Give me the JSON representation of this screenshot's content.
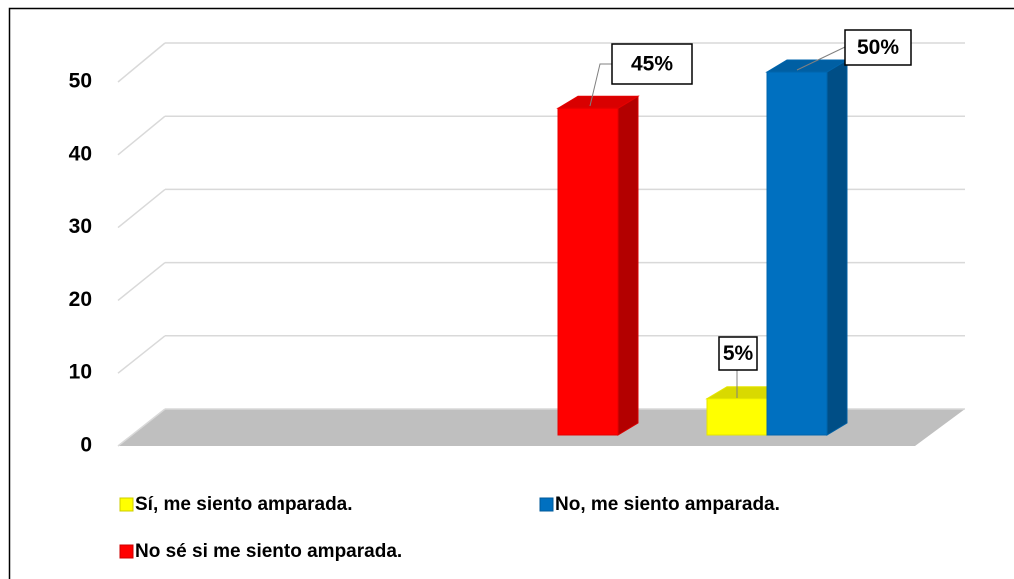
{
  "chart_data": {
    "type": "bar",
    "categories": [
      null
    ],
    "series": [
      {
        "name": "Sí, me siento amparada.",
        "color": "#ffff00",
        "values": [
          5
        ],
        "value_labels": [
          "5%"
        ]
      },
      {
        "name": "No, me siento amparada.",
        "color": "#0070c0",
        "values": [
          50
        ],
        "value_labels": [
          "50%"
        ]
      },
      {
        "name": "No sé si me siento amparada.",
        "color": "#ff0000",
        "values": [
          45
        ],
        "value_labels": [
          "45%"
        ]
      }
    ],
    "ylim": [
      0,
      50
    ],
    "yticks": [
      0,
      10,
      20,
      30,
      40,
      50
    ],
    "grid": true,
    "legend": "bottom"
  }
}
